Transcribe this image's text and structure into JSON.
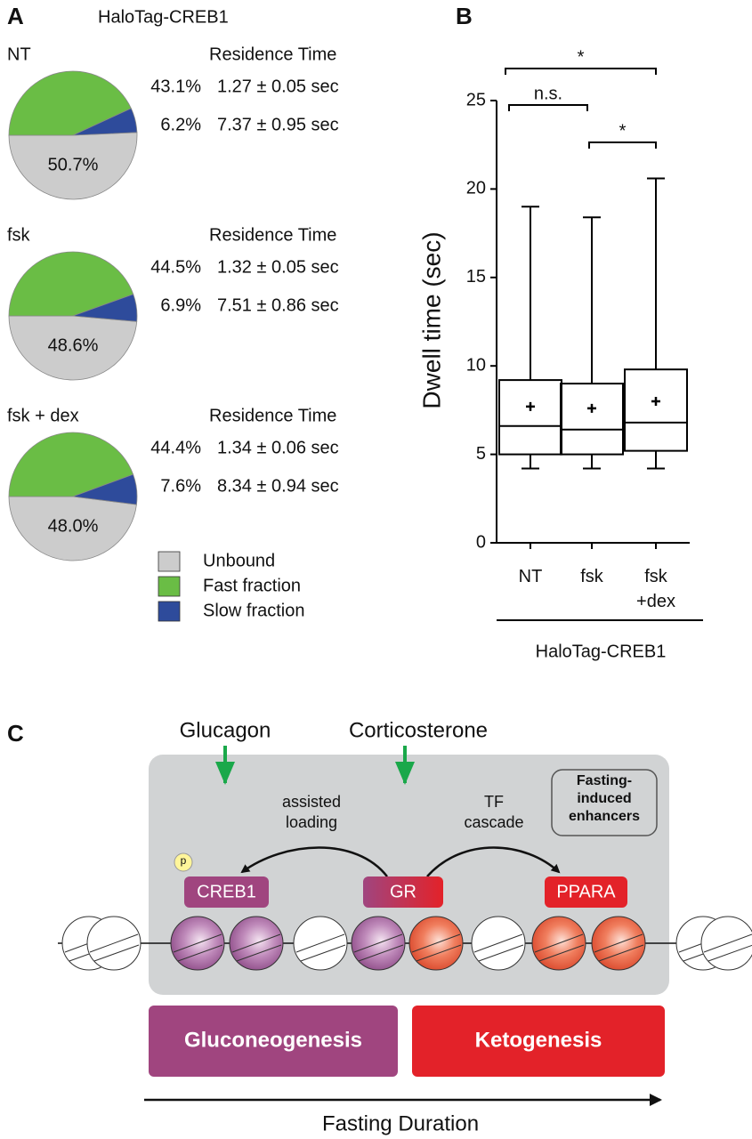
{
  "panel_labels": [
    "A",
    "B",
    "C"
  ],
  "chart_data": [
    {
      "type": "pie",
      "title": "HaloTag-CREB1",
      "categories": [
        "Unbound",
        "Fast fraction",
        "Slow fraction"
      ],
      "colors": [
        "#cccccc",
        "#6abd45",
        "#2e4b9b"
      ],
      "series": [
        {
          "name": "NT",
          "values": [
            50.7,
            43.1,
            6.2
          ],
          "value_labels": [
            "50.7%",
            "43.1%",
            "6.2%"
          ],
          "residence_title": "Residence Time",
          "residence_times": [
            "1.27 ± 0.05 sec",
            "7.37 ± 0.95 sec"
          ]
        },
        {
          "name": "fsk",
          "values": [
            48.6,
            44.5,
            6.9
          ],
          "value_labels": [
            "48.6%",
            "44.5%",
            "6.9%"
          ],
          "residence_title": "Residence Time",
          "residence_times": [
            "1.32 ± 0.05 sec",
            "7.51 ± 0.86 sec"
          ]
        },
        {
          "name": "fsk + dex",
          "values": [
            48.0,
            44.4,
            7.6
          ],
          "value_labels": [
            "48.0%",
            "44.4%",
            "7.6%"
          ],
          "residence_title": "Residence Time",
          "residence_times": [
            "1.34 ± 0.06 sec",
            "8.34 ± 0.94 sec"
          ]
        }
      ]
    },
    {
      "type": "box",
      "ylabel": "Dwell time (sec)",
      "xlabel": "HaloTag-CREB1",
      "categories": [
        "NT",
        "fsk",
        "fsk +dex"
      ],
      "whislo": [
        4.2,
        4.2,
        4.2
      ],
      "q1": [
        5.0,
        5.0,
        5.2
      ],
      "med": [
        6.6,
        6.4,
        6.8
      ],
      "q3": [
        9.2,
        9.0,
        9.8
      ],
      "whishi": [
        19.0,
        18.4,
        20.6
      ],
      "mean": [
        7.7,
        7.6,
        8.0
      ],
      "ylim": [
        0,
        25
      ],
      "yticks": [
        0,
        5,
        10,
        15,
        20,
        25
      ],
      "color": "#000000",
      "annotations": [
        "*",
        "n.s.",
        "*"
      ]
    }
  ],
  "diagram": {
    "signals": [
      "Glucagon",
      "Corticosterone"
    ],
    "arrow_labels": [
      "assisted\nloading",
      "TF\ncascade"
    ],
    "enhancer_box": "Fasting-\ninduced\nenhancers",
    "phospho": "p",
    "factors": [
      "CREB1",
      "GR",
      "PPARA"
    ],
    "processes": [
      "Gluconeogenesis",
      "Ketogenesis"
    ],
    "axis_label": "Fasting Duration"
  }
}
